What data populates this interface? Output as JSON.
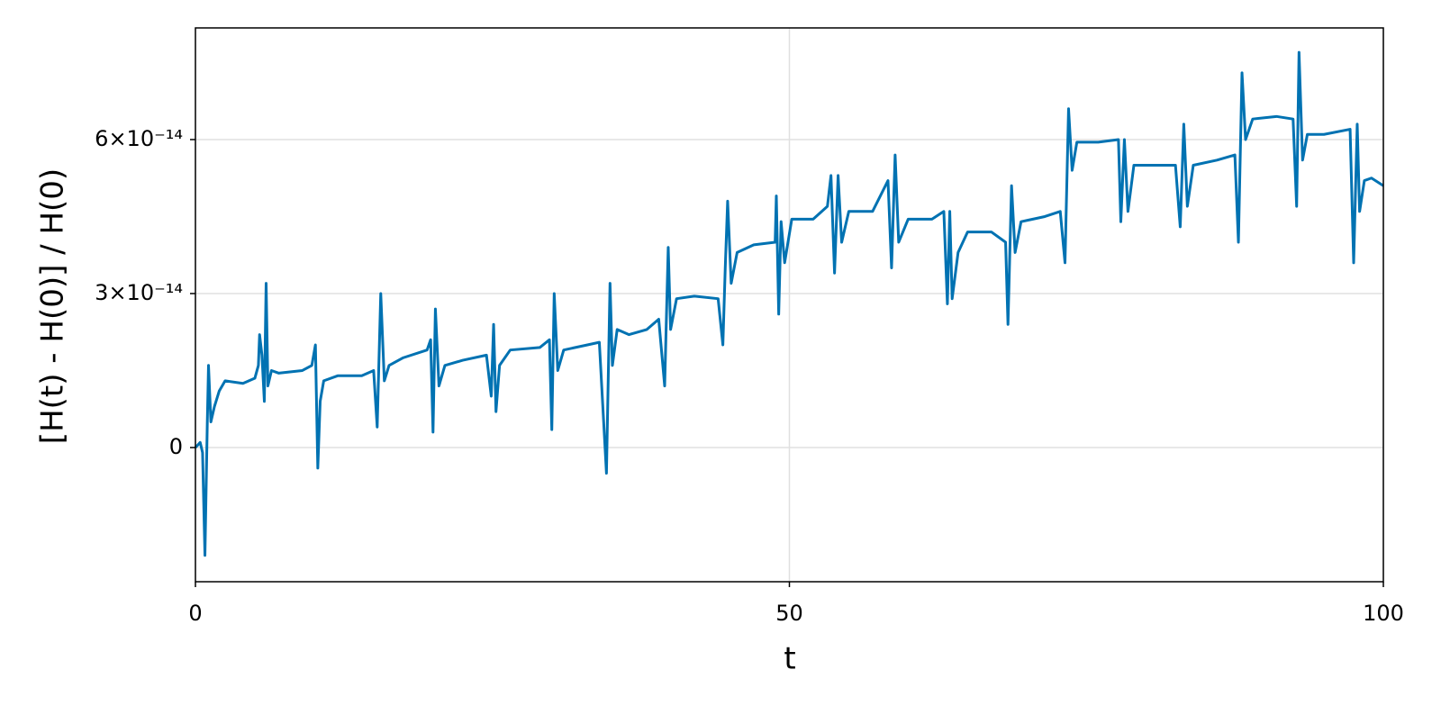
{
  "chart_data": {
    "type": "line",
    "xlabel": "t",
    "ylabel": "[H(t) - H(0)] / H(0)",
    "color": "#0072b2",
    "grid": true,
    "xlim": [
      0,
      100
    ],
    "xticks": [
      0,
      50,
      100
    ],
    "ylim": [
      -2.614e-14,
      8.175e-14
    ],
    "yticks": [
      0,
      {
        "value": 3e-14,
        "label": "3×10⁻¹⁴"
      },
      {
        "value": 6e-14,
        "label": "6×10⁻¹⁴"
      }
    ],
    "x": [
      0,
      0.4,
      0.6,
      0.8,
      1.0,
      1.1,
      1.3,
      1.6,
      2,
      2.5,
      4,
      5,
      5.3,
      5.4,
      5.6,
      5.8,
      5.95,
      6.1,
      6.4,
      7,
      9,
      9.8,
      10.1,
      10.3,
      10.5,
      10.8,
      12,
      14,
      15,
      15.3,
      15.6,
      15.9,
      16.3,
      17.5,
      19.5,
      19.8,
      20,
      20.2,
      20.5,
      21,
      22.5,
      24.5,
      24.9,
      25.1,
      25.3,
      25.6,
      26.5,
      29,
      29.8,
      30,
      30.2,
      30.5,
      31,
      33,
      34,
      34.6,
      34.9,
      35.1,
      35.5,
      36.5,
      38,
      39,
      39.5,
      39.8,
      40,
      40.5,
      42,
      44,
      44.4,
      44.6,
      44.8,
      45.1,
      45.6,
      47,
      48.8,
      48.9,
      49.1,
      49.3,
      49.6,
      50.2,
      52,
      53.2,
      53.5,
      53.8,
      54.1,
      54.4,
      55,
      57,
      58.3,
      58.6,
      58.9,
      59.2,
      60,
      62,
      63,
      63.3,
      63.5,
      63.7,
      64.2,
      65,
      67,
      68.2,
      68.4,
      68.7,
      69,
      69.5,
      71.5,
      72.8,
      73.2,
      73.5,
      73.8,
      74.2,
      76,
      77.7,
      77.9,
      78.2,
      78.5,
      79,
      81,
      82.5,
      82.9,
      83.2,
      83.5,
      84,
      86,
      87.5,
      87.8,
      88.1,
      88.4,
      89,
      91,
      92.4,
      92.7,
      92.9,
      93.2,
      93.6,
      95,
      97.2,
      97.5,
      97.8,
      98,
      98.4,
      99,
      100
    ],
    "values": [
      0,
      1e-15,
      -1e-15,
      -2.1e-14,
      5e-15,
      1.6e-14,
      5e-15,
      8e-15,
      1.1e-14,
      1.3e-14,
      1.25e-14,
      1.35e-14,
      1.6e-14,
      2.2e-14,
      1.8e-14,
      9e-15,
      3.2e-14,
      1.2e-14,
      1.5e-14,
      1.45e-14,
      1.5e-14,
      1.6e-14,
      2e-14,
      -4e-15,
      9e-15,
      1.3e-14,
      1.4e-14,
      1.4e-14,
      1.5e-14,
      4e-15,
      3e-14,
      1.3e-14,
      1.6e-14,
      1.75e-14,
      1.9e-14,
      2.1e-14,
      3e-15,
      2.7e-14,
      1.2e-14,
      1.6e-14,
      1.7e-14,
      1.8e-14,
      1e-14,
      2.4e-14,
      7e-15,
      1.6e-14,
      1.9e-14,
      1.95e-14,
      2.1e-14,
      3.5e-15,
      3e-14,
      1.5e-14,
      1.9e-14,
      2e-14,
      2.05e-14,
      -5e-15,
      3.2e-14,
      1.6e-14,
      2.3e-14,
      2.2e-14,
      2.3e-14,
      2.5e-14,
      1.2e-14,
      3.9e-14,
      2.3e-14,
      2.9e-14,
      2.95e-14,
      2.9e-14,
      2e-14,
      3.5e-14,
      4.8e-14,
      3.2e-14,
      3.8e-14,
      3.95e-14,
      4e-14,
      4.9e-14,
      2.6e-14,
      4.4e-14,
      3.6e-14,
      4.45e-14,
      4.45e-14,
      4.7e-14,
      5.3e-14,
      3.4e-14,
      5.3e-14,
      4e-14,
      4.6e-14,
      4.6e-14,
      5.2e-14,
      3.5e-14,
      5.7e-14,
      4e-14,
      4.45e-14,
      4.45e-14,
      4.6e-14,
      2.8e-14,
      4.6e-14,
      2.9e-14,
      3.8e-14,
      4.2e-14,
      4.2e-14,
      4e-14,
      2.4e-14,
      5.1e-14,
      3.8e-14,
      4.4e-14,
      4.5e-14,
      4.6e-14,
      3.6e-14,
      6.6e-14,
      5.4e-14,
      5.95e-14,
      5.95e-14,
      6e-14,
      4.4e-14,
      6e-14,
      4.6e-14,
      5.5e-14,
      5.5e-14,
      5.5e-14,
      4.3e-14,
      6.3e-14,
      4.7e-14,
      5.5e-14,
      5.6e-14,
      5.7e-14,
      4e-14,
      7.3e-14,
      6e-14,
      6.4e-14,
      6.45e-14,
      6.4e-14,
      4.7e-14,
      7.7e-14,
      5.6e-14,
      6.1e-14,
      6.1e-14,
      6.2e-14,
      3.6e-14,
      6.3e-14,
      4.6e-14,
      5.2e-14,
      5.25e-14,
      5.1e-14
    ]
  }
}
